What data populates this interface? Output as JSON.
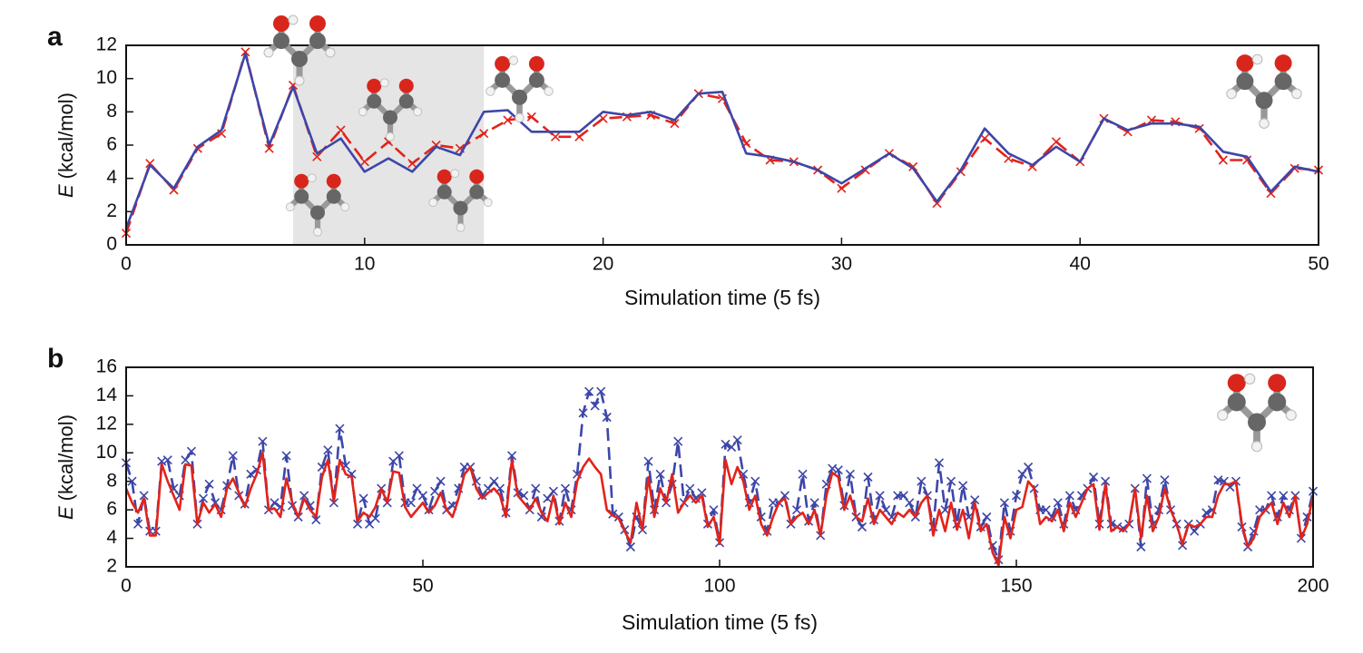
{
  "chart_data": [
    {
      "type": "line",
      "panel_label": "a",
      "xlabel": "Simulation time (5 fs)",
      "ylabel_symbol": "E",
      "ylabel_unit": "(kcal/mol)",
      "xlim": [
        0,
        50
      ],
      "ylim": [
        0,
        12
      ],
      "xticks": [
        0,
        10,
        20,
        30,
        40,
        50
      ],
      "yticks": [
        0,
        2,
        4,
        6,
        8,
        10,
        12
      ],
      "highlight": [
        7,
        15
      ],
      "highlight_color": "#e5e5e5",
      "x": [
        0,
        1,
        2,
        3,
        4,
        5,
        6,
        7,
        8,
        9,
        10,
        11,
        12,
        13,
        14,
        15,
        16,
        17,
        18,
        19,
        20,
        21,
        22,
        23,
        24,
        25,
        26,
        27,
        28,
        29,
        30,
        31,
        32,
        33,
        34,
        35,
        36,
        37,
        38,
        39,
        40,
        41,
        42,
        43,
        44,
        45,
        46,
        47,
        48,
        49,
        50
      ],
      "series": [
        {
          "color": "#e2231a",
          "dashed": true,
          "marker": "x",
          "values": [
            0.7,
            4.9,
            3.3,
            5.8,
            6.7,
            11.6,
            5.8,
            9.6,
            5.3,
            6.9,
            5.0,
            6.2,
            4.9,
            6.0,
            5.8,
            6.7,
            7.5,
            7.7,
            6.5,
            6.5,
            7.6,
            7.7,
            7.8,
            7.3,
            9.1,
            8.8,
            6.1,
            5.1,
            5.0,
            4.5,
            3.4,
            4.5,
            5.5,
            4.7,
            2.5,
            4.4,
            6.4,
            5.2,
            4.7,
            6.2,
            5.0,
            7.6,
            6.8,
            7.5,
            7.4,
            7.0,
            5.1,
            5.1,
            3.1,
            4.6,
            4.5
          ]
        },
        {
          "color": "#3d46a8",
          "dashed": false,
          "marker": null,
          "values": [
            1.0,
            4.8,
            3.4,
            5.9,
            6.9,
            11.5,
            6.0,
            9.5,
            5.5,
            6.4,
            4.4,
            5.2,
            4.4,
            5.9,
            5.4,
            8.0,
            8.1,
            6.8,
            6.8,
            6.8,
            8.0,
            7.8,
            8.0,
            7.5,
            9.1,
            9.2,
            5.5,
            5.3,
            5.0,
            4.5,
            3.7,
            4.6,
            5.5,
            4.6,
            2.6,
            4.5,
            7.0,
            5.5,
            4.8,
            5.9,
            5.0,
            7.6,
            6.9,
            7.3,
            7.3,
            7.1,
            5.6,
            5.3,
            3.2,
            4.7,
            4.4
          ]
        }
      ]
    },
    {
      "type": "line",
      "panel_label": "b",
      "xlabel": "Simulation time (5 fs)",
      "ylabel_symbol": "E",
      "ylabel_unit": "(kcal/mol)",
      "xlim": [
        0,
        200
      ],
      "ylim": [
        2,
        16
      ],
      "xticks": [
        0,
        50,
        100,
        150,
        200
      ],
      "yticks": [
        2,
        4,
        6,
        8,
        10,
        12,
        14,
        16
      ],
      "x": [
        0,
        1,
        2,
        3,
        4,
        5,
        6,
        7,
        8,
        9,
        10,
        11,
        12,
        13,
        14,
        15,
        16,
        17,
        18,
        19,
        20,
        21,
        22,
        23,
        24,
        25,
        26,
        27,
        28,
        29,
        30,
        31,
        32,
        33,
        34,
        35,
        36,
        37,
        38,
        39,
        40,
        41,
        42,
        43,
        44,
        45,
        46,
        47,
        48,
        49,
        50,
        51,
        52,
        53,
        54,
        55,
        56,
        57,
        58,
        59,
        60,
        61,
        62,
        63,
        64,
        65,
        66,
        67,
        68,
        69,
        70,
        71,
        72,
        73,
        74,
        75,
        76,
        77,
        78,
        79,
        80,
        81,
        82,
        83,
        84,
        85,
        86,
        87,
        88,
        89,
        90,
        91,
        92,
        93,
        94,
        95,
        96,
        97,
        98,
        99,
        100,
        101,
        102,
        103,
        104,
        105,
        106,
        107,
        108,
        109,
        110,
        111,
        112,
        113,
        114,
        115,
        116,
        117,
        118,
        119,
        120,
        121,
        122,
        123,
        124,
        125,
        126,
        127,
        128,
        129,
        130,
        131,
        132,
        133,
        134,
        135,
        136,
        137,
        138,
        139,
        140,
        141,
        142,
        143,
        144,
        145,
        146,
        147,
        148,
        149,
        150,
        151,
        152,
        153,
        154,
        155,
        156,
        157,
        158,
        159,
        160,
        161,
        162,
        163,
        164,
        165,
        166,
        167,
        168,
        169,
        170,
        171,
        172,
        173,
        174,
        175,
        176,
        177,
        178,
        179,
        180,
        181,
        182,
        183,
        184,
        185,
        186,
        187,
        188,
        189,
        190,
        191,
        192,
        193,
        194,
        195,
        196,
        197,
        198,
        199,
        200
      ],
      "series": [
        {
          "color": "#3d46a8",
          "dashed": true,
          "marker": "x",
          "values": [
            9.3,
            8.0,
            5.0,
            7.0,
            4.5,
            4.5,
            9.4,
            9.5,
            7.5,
            7.0,
            9.5,
            10.1,
            5.0,
            6.8,
            7.8,
            6.5,
            6.0,
            7.7,
            9.8,
            7.0,
            6.4,
            8.5,
            8.8,
            10.8,
            6.0,
            6.5,
            6.2,
            9.8,
            6.3,
            5.5,
            7.0,
            6.3,
            5.3,
            9.0,
            10.2,
            6.5,
            11.7,
            9.1,
            8.5,
            5.0,
            6.8,
            5.0,
            5.4,
            7.5,
            6.5,
            9.4,
            9.8,
            6.5,
            6.5,
            7.5,
            7.0,
            6.0,
            7.3,
            8.0,
            6.0,
            6.3,
            7.5,
            9.0,
            9.0,
            8.0,
            7.0,
            7.5,
            8.0,
            7.5,
            5.8,
            9.8,
            7.2,
            7.0,
            6.0,
            7.5,
            5.5,
            6.8,
            7.3,
            5.2,
            7.5,
            6.0,
            8.5,
            12.8,
            14.3,
            13.3,
            14.3,
            12.5,
            5.7,
            5.5,
            4.6,
            3.4,
            5.5,
            4.6,
            9.4,
            6.0,
            8.5,
            6.5,
            7.8,
            10.8,
            6.5,
            7.5,
            6.8,
            7.2,
            5.0,
            6.0,
            3.7,
            10.6,
            10.4,
            10.9,
            8.5,
            6.5,
            8.0,
            5.5,
            4.5,
            6.5,
            6.5,
            7.0,
            5.0,
            6.0,
            8.5,
            5.2,
            6.5,
            4.2,
            7.8,
            8.9,
            8.8,
            6.3,
            8.5,
            5.5,
            4.8,
            8.3,
            5.3,
            7.0,
            6.0,
            5.5,
            7.0,
            7.0,
            6.5,
            5.5,
            8.0,
            7.0,
            4.8,
            9.3,
            6.0,
            8.0,
            5.0,
            7.7,
            5.5,
            6.7,
            4.8,
            5.5,
            3.5,
            2.5,
            6.5,
            4.5,
            7.0,
            8.5,
            9.0,
            7.5,
            6.0,
            6.0,
            5.5,
            6.5,
            5.0,
            7.0,
            6.0,
            7.0,
            7.5,
            8.3,
            5.0,
            8.0,
            5.0,
            4.8,
            4.7,
            5.0,
            7.5,
            3.4,
            8.2,
            5.0,
            6.0,
            8.1,
            6.0,
            5.0,
            3.5,
            5.0,
            4.5,
            5.0,
            5.8,
            6.0,
            8.1,
            8.0,
            7.6,
            8.0,
            4.8,
            3.4,
            4.5,
            6.0,
            6.0,
            7.0,
            5.5,
            7.0,
            6.0,
            7.0,
            4.0,
            5.5,
            7.3
          ]
        },
        {
          "color": "#e2231a",
          "dashed": false,
          "marker": null,
          "values": [
            7.5,
            6.5,
            5.8,
            6.8,
            4.2,
            4.2,
            9.2,
            8.0,
            7.0,
            6.0,
            9.2,
            9.1,
            5.0,
            6.5,
            5.8,
            6.4,
            5.5,
            7.5,
            8.2,
            7.2,
            6.2,
            7.5,
            8.5,
            10.0,
            6.0,
            6.1,
            5.5,
            8.2,
            6.5,
            5.5,
            6.8,
            6.0,
            5.5,
            8.3,
            9.5,
            6.6,
            9.5,
            8.5,
            8.3,
            5.2,
            5.8,
            5.5,
            6.2,
            7.5,
            6.5,
            8.7,
            8.6,
            6.2,
            5.5,
            6.0,
            6.5,
            5.8,
            6.3,
            7.2,
            6.0,
            5.5,
            6.8,
            8.5,
            9.0,
            7.5,
            6.8,
            7.2,
            7.5,
            7.0,
            5.5,
            9.5,
            7.0,
            6.5,
            6.0,
            6.8,
            5.8,
            5.2,
            7.0,
            5.0,
            6.5,
            5.5,
            8.0,
            9.0,
            9.6,
            9.0,
            8.5,
            6.0,
            5.6,
            5.4,
            4.5,
            3.7,
            6.5,
            4.6,
            8.3,
            5.5,
            7.5,
            6.5,
            8.5,
            5.8,
            6.5,
            7.0,
            6.5,
            7.0,
            4.8,
            5.5,
            3.6,
            9.5,
            7.8,
            9.0,
            8.0,
            6.0,
            7.0,
            5.0,
            4.2,
            5.5,
            6.5,
            6.8,
            5.0,
            5.5,
            5.8,
            5.0,
            6.0,
            4.2,
            7.0,
            8.6,
            8.3,
            6.0,
            7.0,
            5.5,
            5.2,
            6.8,
            5.0,
            6.0,
            5.5,
            5.0,
            5.8,
            5.5,
            6.0,
            5.5,
            6.5,
            7.0,
            4.2,
            6.0,
            4.5,
            6.5,
            4.6,
            6.0,
            4.0,
            6.5,
            4.5,
            5.0,
            3.0,
            2.1,
            5.5,
            4.0,
            6.0,
            6.2,
            8.0,
            7.5,
            5.0,
            5.5,
            5.2,
            6.0,
            4.5,
            6.5,
            5.5,
            6.5,
            7.5,
            7.8,
            4.6,
            7.8,
            4.5,
            4.8,
            4.5,
            5.0,
            7.5,
            4.0,
            7.0,
            4.5,
            5.5,
            7.5,
            6.0,
            5.0,
            3.6,
            5.0,
            4.8,
            5.0,
            5.5,
            5.5,
            7.0,
            7.8,
            7.8,
            8.0,
            5.0,
            3.4,
            4.0,
            5.5,
            6.0,
            6.5,
            5.0,
            6.5,
            5.5,
            7.0,
            4.0,
            5.0,
            7.0
          ]
        }
      ]
    }
  ]
}
